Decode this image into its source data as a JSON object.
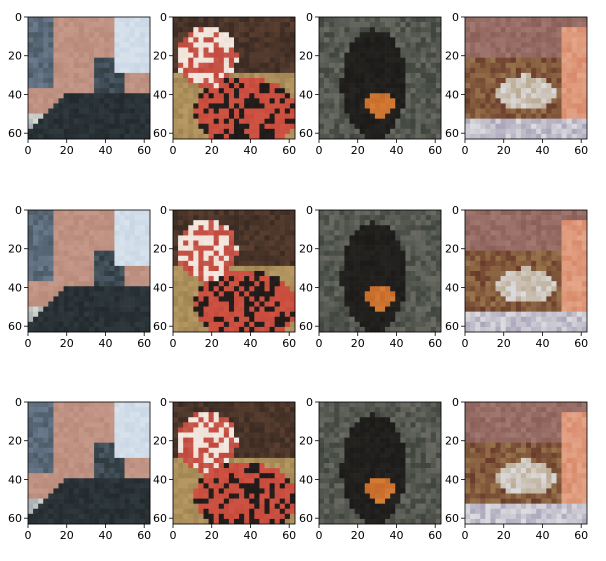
{
  "chart_data": {
    "type": "image-grid",
    "rows": 3,
    "cols": 4,
    "xlim": [
      0,
      63
    ],
    "ylim": [
      63,
      0
    ],
    "xticks": [
      0,
      20,
      40,
      60
    ],
    "yticks": [
      0,
      20,
      40,
      60
    ],
    "panels": [
      {
        "row": 0,
        "col": 0,
        "content": "brick-building-stairs",
        "colors": [
          "#b88a7a",
          "#6a7b8e",
          "#2f3a3f",
          "#c9d7e5"
        ]
      },
      {
        "row": 0,
        "col": 1,
        "content": "lily-and-tomatoes",
        "colors": [
          "#c0463a",
          "#e9d6c8",
          "#1f1a18",
          "#b99a64"
        ]
      },
      {
        "row": 0,
        "col": 2,
        "content": "person-playing-banjo",
        "colors": [
          "#2b2a27",
          "#6a6b63",
          "#c46a2a",
          "#3f453e"
        ]
      },
      {
        "row": 0,
        "col": 3,
        "content": "food-on-table",
        "colors": [
          "#8a5f58",
          "#dcdde0",
          "#6a3b2a",
          "#d88a6a"
        ]
      },
      {
        "row": 1,
        "col": 0,
        "content": "brick-building-stairs",
        "colors": [
          "#b88a7a",
          "#6a7b8e",
          "#2f3a3f",
          "#c9d7e5"
        ]
      },
      {
        "row": 1,
        "col": 1,
        "content": "lily-and-tomatoes",
        "colors": [
          "#c0463a",
          "#e9d6c8",
          "#1f1a18",
          "#b99a64"
        ]
      },
      {
        "row": 1,
        "col": 2,
        "content": "person-playing-banjo",
        "colors": [
          "#2b2a27",
          "#6a6b63",
          "#c46a2a",
          "#3f453e"
        ]
      },
      {
        "row": 1,
        "col": 3,
        "content": "food-on-table",
        "colors": [
          "#8a5f58",
          "#dcdde0",
          "#6a3b2a",
          "#d88a6a"
        ]
      },
      {
        "row": 2,
        "col": 0,
        "content": "brick-building-stairs",
        "colors": [
          "#b88a7a",
          "#6a7b8e",
          "#2f3a3f",
          "#c9d7e5"
        ]
      },
      {
        "row": 2,
        "col": 1,
        "content": "lily-and-tomatoes",
        "colors": [
          "#c0463a",
          "#e9d6c8",
          "#1f1a18",
          "#b99a64"
        ]
      },
      {
        "row": 2,
        "col": 2,
        "content": "person-playing-banjo",
        "colors": [
          "#2b2a27",
          "#6a6b63",
          "#c46a2a",
          "#3f453e"
        ]
      },
      {
        "row": 2,
        "col": 3,
        "content": "food-on-table",
        "colors": [
          "#8a5f58",
          "#dcdde0",
          "#6a3b2a",
          "#d88a6a"
        ]
      }
    ]
  }
}
